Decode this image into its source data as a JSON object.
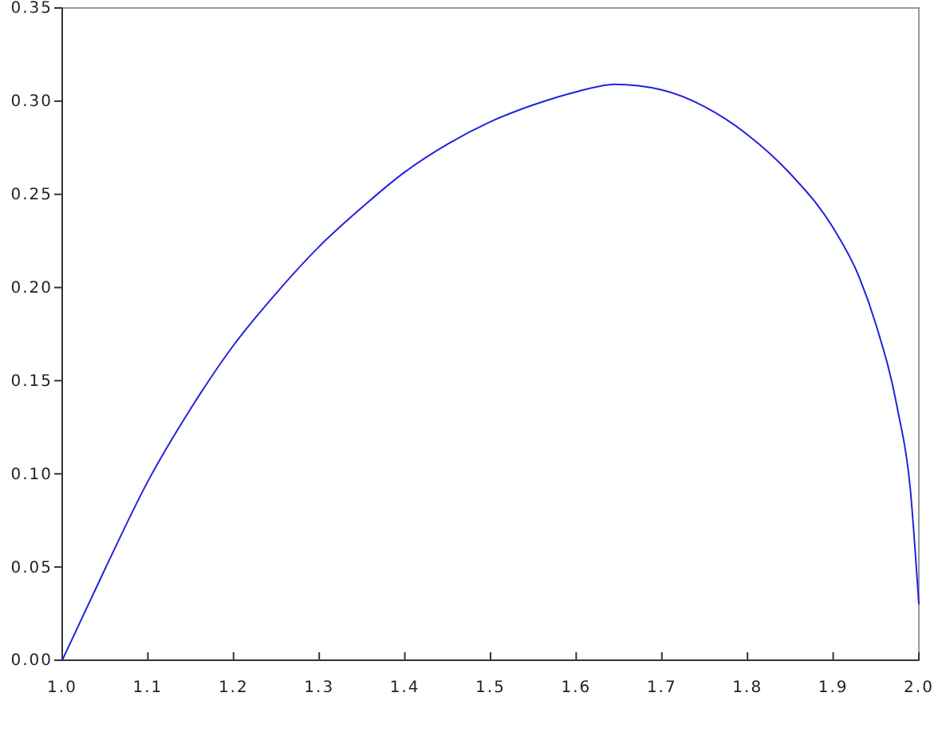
{
  "chart_data": {
    "type": "line",
    "xlim": [
      1.0,
      2.0
    ],
    "ylim": [
      0,
      0.35
    ],
    "xticks": [
      {
        "value": 1.0,
        "label": "1.0"
      },
      {
        "value": 1.1,
        "label": "1.1"
      },
      {
        "value": 1.2,
        "label": "1.2"
      },
      {
        "value": 1.3,
        "label": "1.3"
      },
      {
        "value": 1.4,
        "label": "1.4"
      },
      {
        "value": 1.5,
        "label": "1.5"
      },
      {
        "value": 1.6,
        "label": "1.6"
      },
      {
        "value": 1.7,
        "label": "1.7"
      },
      {
        "value": 1.8,
        "label": "1.8"
      },
      {
        "value": 1.9,
        "label": "1.9"
      },
      {
        "value": 2.0,
        "label": "2.0"
      }
    ],
    "yticks": [
      {
        "value": 0,
        "label": "0.00"
      },
      {
        "value": 0.05,
        "label": "0.05"
      },
      {
        "value": 0.1,
        "label": "0.10"
      },
      {
        "value": 0.15,
        "label": "0.15"
      },
      {
        "value": 0.2,
        "label": "0.20"
      },
      {
        "value": 0.25,
        "label": "0.25"
      },
      {
        "value": 0.3,
        "label": "0.30"
      },
      {
        "value": 0.35,
        "label": "0.35"
      }
    ],
    "grid": false,
    "marker": "none",
    "line_style": "solid",
    "series": [
      {
        "color": "#2222dd",
        "x": [
          1.0,
          1.05,
          1.1,
          1.15,
          1.2,
          1.25,
          1.3,
          1.35,
          1.4,
          1.45,
          1.5,
          1.55,
          1.6,
          1.645,
          1.7,
          1.75,
          1.8,
          1.85,
          1.9,
          1.93,
          1.95,
          1.975,
          1.99,
          2.0
        ],
        "values": [
          0,
          0.049,
          0.096,
          0.135,
          0.169,
          0.197,
          0.222,
          0.243,
          0.262,
          0.277,
          0.289,
          0.298,
          0.305,
          0.309,
          0.306,
          0.297,
          0.282,
          0.261,
          0.232,
          0.206,
          0.18,
          0.135,
          0.092,
          0.03
        ]
      }
    ]
  }
}
